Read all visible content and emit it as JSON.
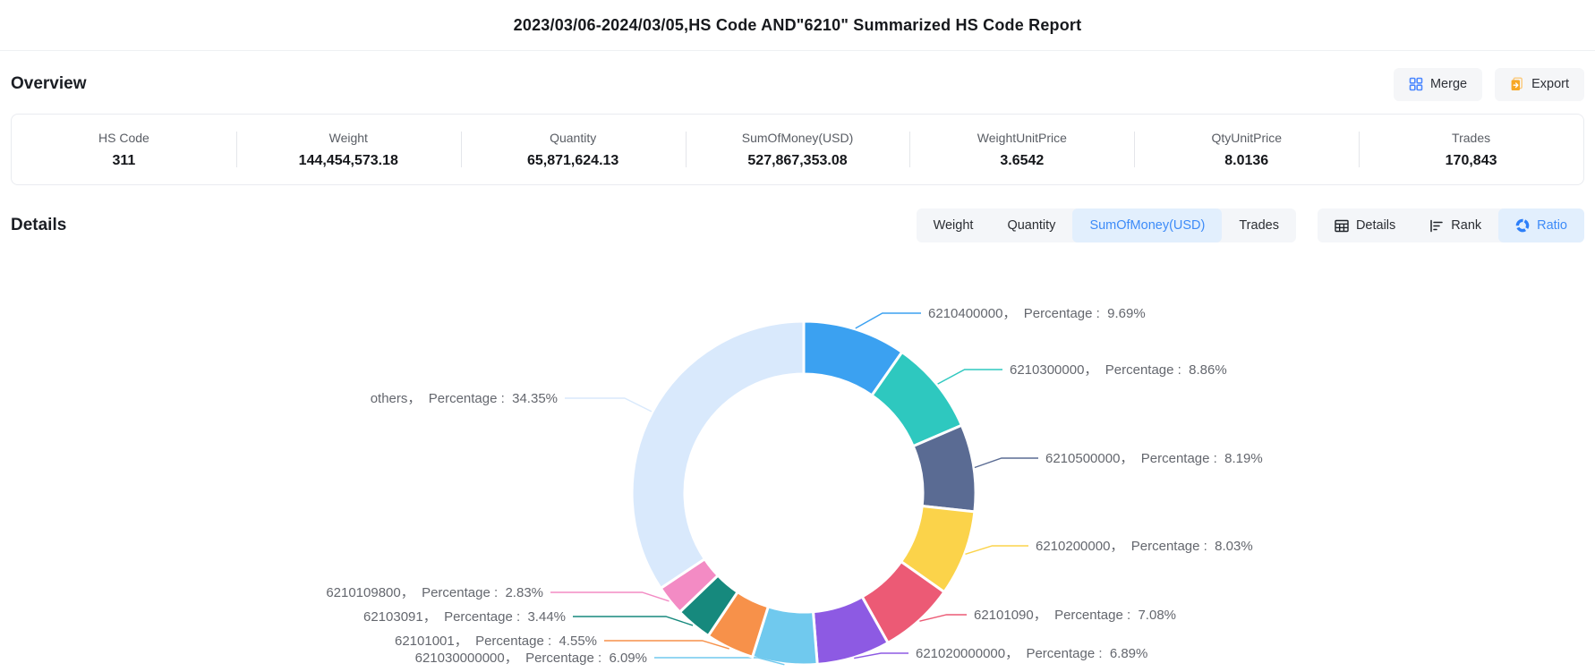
{
  "header": {
    "title": "2023/03/06-2024/03/05,HS Code AND\"6210\" Summarized HS Code Report"
  },
  "overview": {
    "heading": "Overview",
    "merge_label": "Merge",
    "export_label": "Export",
    "stats": [
      {
        "label": "HS Code",
        "value": "311"
      },
      {
        "label": "Weight",
        "value": "144,454,573.18"
      },
      {
        "label": "Quantity",
        "value": "65,871,624.13"
      },
      {
        "label": "SumOfMoney(USD)",
        "value": "527,867,353.08"
      },
      {
        "label": "WeightUnitPrice",
        "value": "3.6542"
      },
      {
        "label": "QtyUnitPrice",
        "value": "8.0136"
      },
      {
        "label": "Trades",
        "value": "170,843"
      }
    ]
  },
  "details": {
    "heading": "Details",
    "metric_tabs": [
      {
        "label": "Weight",
        "active": false
      },
      {
        "label": "Quantity",
        "active": false
      },
      {
        "label": "SumOfMoney(USD)",
        "active": true
      },
      {
        "label": "Trades",
        "active": false
      }
    ],
    "view_tabs": [
      {
        "label": "Details",
        "icon": "table-icon",
        "active": false
      },
      {
        "label": "Rank",
        "icon": "rank-icon",
        "active": false
      },
      {
        "label": "Ratio",
        "icon": "ratio-icon",
        "active": true
      }
    ]
  },
  "colors": {
    "accent_blue": "#3d8bf8",
    "merge_icon": "#4c88ff",
    "export_icon": "#f7a825",
    "dark_icon": "#1f2329",
    "label_text": "#64676e"
  },
  "chart_data": {
    "type": "pie",
    "subtype": "donut",
    "title": "SumOfMoney(USD) ratio by HS code",
    "legend_position": "none",
    "label_format": "{code}， Percentage : {pct}%",
    "slices": [
      {
        "code": "6210400000",
        "percentage": 9.69,
        "color": "#3ba1f1"
      },
      {
        "code": "6210300000",
        "percentage": 8.86,
        "color": "#2ec8bf"
      },
      {
        "code": "6210500000",
        "percentage": 8.19,
        "color": "#5a6b93"
      },
      {
        "code": "6210200000",
        "percentage": 8.03,
        "color": "#fbd34a"
      },
      {
        "code": "62101090",
        "percentage": 7.08,
        "color": "#ec5a75"
      },
      {
        "code": "621020000000",
        "percentage": 6.89,
        "color": "#8d5ae3"
      },
      {
        "code": "621030000000",
        "percentage": 6.09,
        "color": "#70c9ee"
      },
      {
        "code": "62101001",
        "percentage": 4.55,
        "color": "#f7914a"
      },
      {
        "code": "62103091",
        "percentage": 3.44,
        "color": "#16897d"
      },
      {
        "code": "6210109800",
        "percentage": 2.83,
        "color": "#f38bc4"
      },
      {
        "code": "others",
        "percentage": 34.35,
        "color": "#d9e9fc"
      }
    ]
  }
}
